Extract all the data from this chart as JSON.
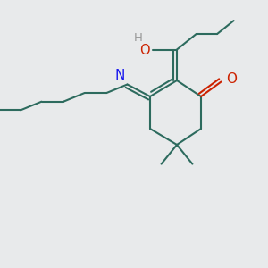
{
  "bg_color": "#e8eaeb",
  "bond_color": "#2d6b5e",
  "N_color": "#1a1aee",
  "O_color": "#cc2200",
  "H_color": "#999999",
  "line_width": 1.5,
  "font_size": 9.5,
  "figsize": [
    3.0,
    3.0
  ],
  "dpi": 100,
  "xlim": [
    -1,
    9
  ],
  "ylim": [
    -1,
    9
  ]
}
